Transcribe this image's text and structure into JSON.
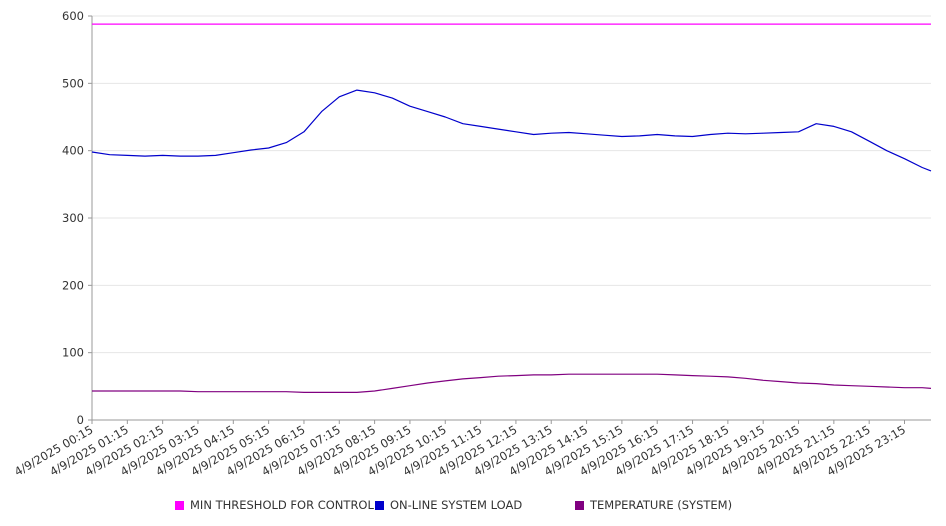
{
  "chart_data": {
    "type": "line",
    "title": "",
    "xlabel": "",
    "ylabel": "",
    "ylim": [
      0,
      600
    ],
    "y_ticks": [
      "0",
      "100",
      "200",
      "300",
      "400",
      "500",
      "600"
    ],
    "x_tick_labels": [
      "4/9/2025 00:15",
      "4/9/2025 01:15",
      "4/9/2025 02:15",
      "4/9/2025 03:15",
      "4/9/2025 04:15",
      "4/9/2025 05:15",
      "4/9/2025 06:15",
      "4/9/2025 07:15",
      "4/9/2025 08:15",
      "4/9/2025 09:15",
      "4/9/2025 10:15",
      "4/9/2025 11:15",
      "4/9/2025 12:15",
      "4/9/2025 13:15",
      "4/9/2025 14:15",
      "4/9/2025 15:15",
      "4/9/2025 16:15",
      "4/9/2025 17:15",
      "4/9/2025 18:15",
      "4/9/2025 19:15",
      "4/9/2025 20:15",
      "4/9/2025 21:15",
      "4/9/2025 22:15",
      "4/9/2025 23:15"
    ],
    "x_hours": [
      0,
      0.5,
      1,
      1.5,
      2,
      2.5,
      3,
      3.5,
      4,
      4.5,
      5,
      5.5,
      6,
      6.5,
      7,
      7.5,
      8,
      8.5,
      9,
      9.5,
      10,
      10.5,
      11,
      11.5,
      12,
      12.5,
      13,
      13.5,
      14,
      14.5,
      15,
      15.5,
      16,
      16.5,
      17,
      17.5,
      18,
      18.5,
      19,
      19.5,
      20,
      20.5,
      21,
      21.5,
      22,
      22.5,
      23,
      23.5,
      23.75
    ],
    "series": [
      {
        "name": "MIN THRESHOLD FOR CONTROL",
        "color": "#ff00ff",
        "values": [
          588,
          588,
          588,
          588,
          588,
          588,
          588,
          588,
          588,
          588,
          588,
          588,
          588,
          588,
          588,
          588,
          588,
          588,
          588,
          588,
          588,
          588,
          588,
          588,
          588,
          588,
          588,
          588,
          588,
          588,
          588,
          588,
          588,
          588,
          588,
          588,
          588,
          588,
          588,
          588,
          588,
          588,
          588,
          588,
          588,
          588,
          588,
          588,
          588
        ]
      },
      {
        "name": "ON-LINE SYSTEM LOAD",
        "color": "#0000cc",
        "values": [
          398,
          394,
          393,
          392,
          393,
          392,
          392,
          393,
          397,
          401,
          404,
          412,
          428,
          458,
          480,
          490,
          486,
          478,
          466,
          458,
          450,
          440,
          436,
          432,
          428,
          424,
          426,
          427,
          425,
          423,
          421,
          422,
          424,
          422,
          421,
          424,
          426,
          425,
          426,
          427,
          428,
          440,
          436,
          428,
          414,
          400,
          388,
          375,
          370
        ]
      },
      {
        "name": "TEMPERATURE (SYSTEM)",
        "color": "#800080",
        "values": [
          43,
          43,
          43,
          43,
          43,
          43,
          42,
          42,
          42,
          42,
          42,
          42,
          41,
          41,
          41,
          41,
          43,
          47,
          51,
          55,
          58,
          61,
          63,
          65,
          66,
          67,
          67,
          68,
          68,
          68,
          68,
          68,
          68,
          67,
          66,
          65,
          64,
          62,
          59,
          57,
          55,
          54,
          52,
          51,
          50,
          49,
          48,
          48,
          47
        ]
      }
    ],
    "grid": true,
    "legend_position": "bottom"
  }
}
